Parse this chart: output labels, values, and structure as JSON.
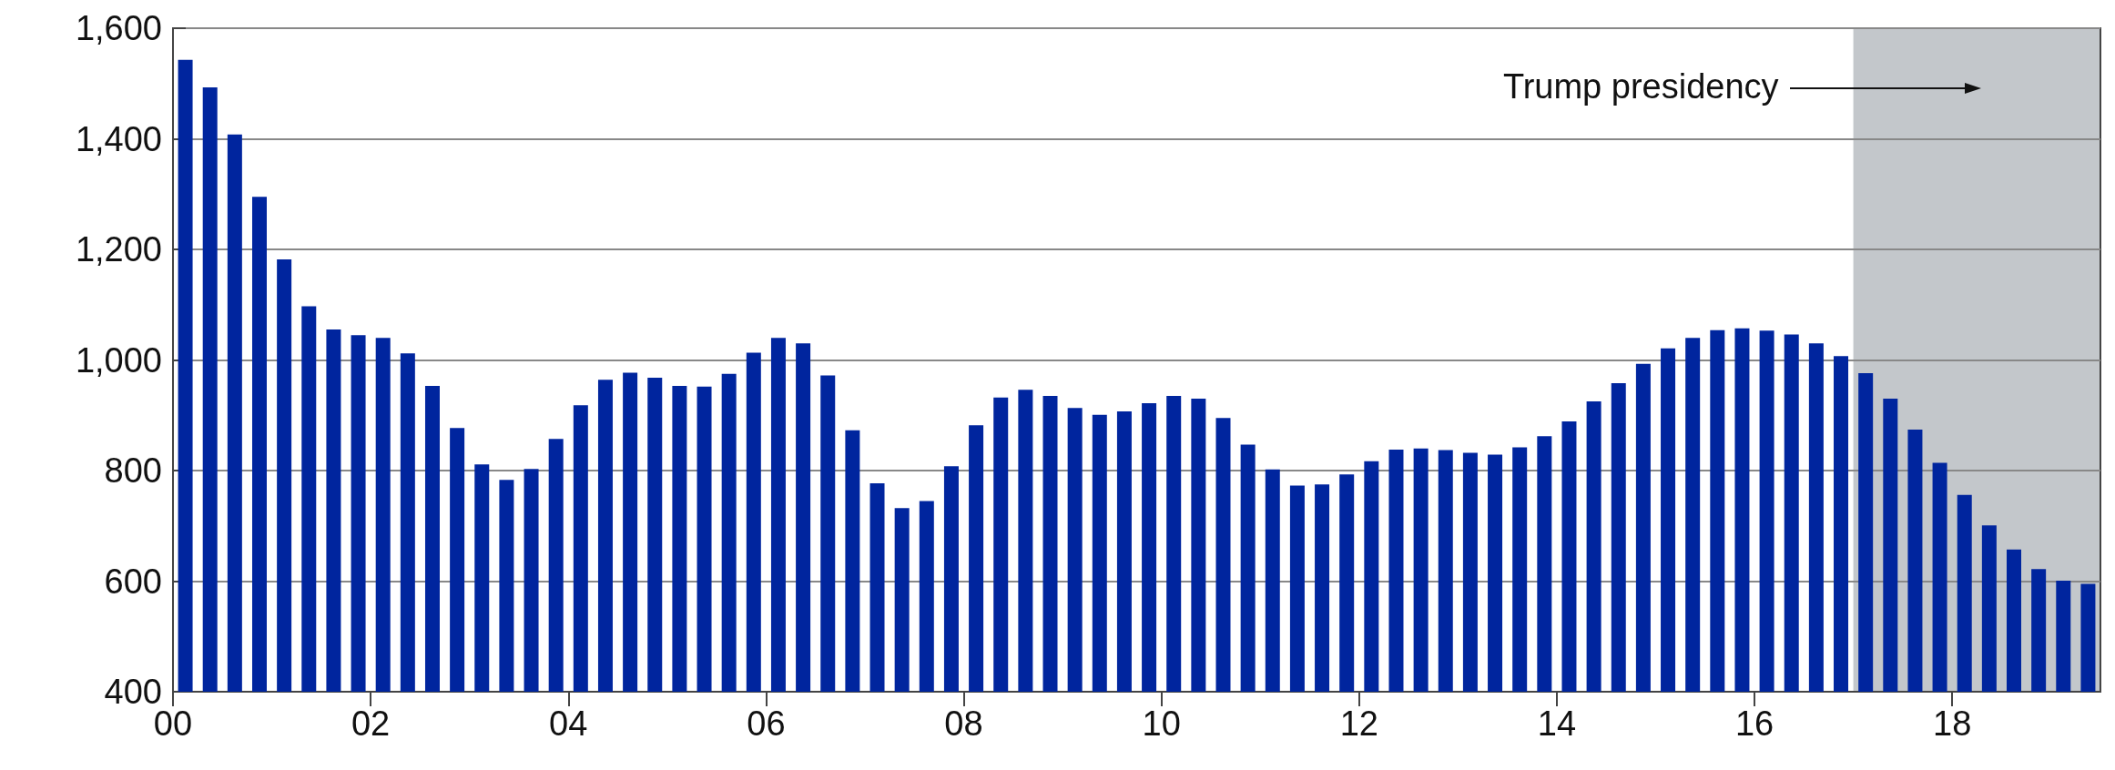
{
  "chart_data": {
    "type": "bar",
    "color": "#00259e",
    "x": [
      2000.125,
      2000.375,
      2000.625,
      2000.875,
      2001.125,
      2001.375,
      2001.625,
      2001.875,
      2002.125,
      2002.375,
      2002.625,
      2002.875,
      2003.125,
      2003.375,
      2003.625,
      2003.875,
      2004.125,
      2004.375,
      2004.625,
      2004.875,
      2005.125,
      2005.375,
      2005.625,
      2005.875,
      2006.125,
      2006.375,
      2006.625,
      2006.875,
      2007.125,
      2007.375,
      2007.625,
      2007.875,
      2008.125,
      2008.375,
      2008.625,
      2008.875,
      2009.125,
      2009.375,
      2009.625,
      2009.875,
      2010.125,
      2010.375,
      2010.625,
      2010.875,
      2011.125,
      2011.375,
      2011.625,
      2011.875,
      2012.125,
      2012.375,
      2012.625,
      2012.875,
      2013.125,
      2013.375,
      2013.625,
      2013.875,
      2014.125,
      2014.375,
      2014.625,
      2014.875,
      2015.125,
      2015.375,
      2015.625,
      2015.875,
      2016.125,
      2016.375,
      2016.625,
      2016.875,
      2017.125,
      2017.375,
      2017.625,
      2017.875,
      2018.125,
      2018.375,
      2018.625,
      2018.875,
      2019.125,
      2019.375
    ],
    "values": [
      1543,
      1493,
      1408,
      1295,
      1182,
      1097,
      1055,
      1045,
      1040,
      1012,
      953,
      877,
      811,
      783,
      803,
      857,
      918,
      964,
      977,
      968,
      953,
      952,
      975,
      1013,
      1040,
      1030,
      972,
      873,
      777,
      732,
      745,
      808,
      882,
      932,
      946,
      935,
      913,
      901,
      907,
      922,
      935,
      930,
      895,
      847,
      802,
      773,
      775,
      793,
      817,
      838,
      840,
      837,
      832,
      829,
      842,
      862,
      889,
      925,
      958,
      993,
      1021,
      1040,
      1054,
      1057,
      1053,
      1046,
      1030,
      1007,
      976,
      930,
      874,
      814,
      756,
      701,
      657,
      622,
      601,
      595
    ],
    "xlim": [
      2000,
      2019.5
    ],
    "xticks": [
      {
        "value": 2000,
        "label": "00"
      },
      {
        "value": 2002,
        "label": "02"
      },
      {
        "value": 2004,
        "label": "04"
      },
      {
        "value": 2006,
        "label": "06"
      },
      {
        "value": 2008,
        "label": "08"
      },
      {
        "value": 2010,
        "label": "10"
      },
      {
        "value": 2012,
        "label": "12"
      },
      {
        "value": 2014,
        "label": "14"
      },
      {
        "value": 2016,
        "label": "16"
      },
      {
        "value": 2018,
        "label": "18"
      }
    ],
    "ylim": [
      400,
      1600
    ],
    "yticks": [
      {
        "value": 400,
        "label": "400"
      },
      {
        "value": 600,
        "label": "600"
      },
      {
        "value": 800,
        "label": "800"
      },
      {
        "value": 1000,
        "label": "1,000"
      },
      {
        "value": 1200,
        "label": "1,200"
      },
      {
        "value": 1400,
        "label": "1,400"
      },
      {
        "value": 1600,
        "label": "1,600"
      }
    ],
    "grid": "y",
    "bands": [
      {
        "axis": "x",
        "from": 2017,
        "to": 2019.5,
        "label": "Trump presidency",
        "color": "#c3c7cb"
      }
    ]
  }
}
